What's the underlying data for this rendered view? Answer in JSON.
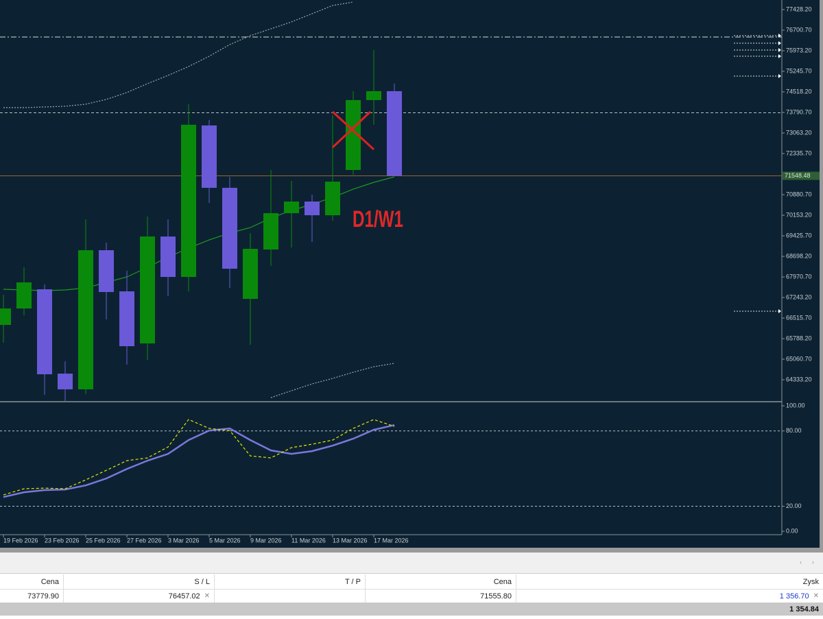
{
  "chart_data": [
    {
      "type": "candlestick",
      "categories": [
        "19 Feb 2026",
        null,
        "23 Feb 2026",
        null,
        "25 Feb 2026",
        null,
        "27 Feb 2026",
        null,
        "3 Mar 2026",
        null,
        "5 Mar 2026",
        null,
        "9 Mar 2026",
        null,
        "11 Mar 2026",
        null,
        "13 Mar 2026",
        null,
        "17 Mar 2026",
        null
      ],
      "open": [
        66273,
        66855,
        67534,
        64551,
        63994,
        68916,
        67461,
        65618,
        69401,
        67971,
        73330,
        71123,
        67195,
        68941,
        70226,
        70638,
        70153,
        71754,
        74227,
        74542
      ],
      "high": [
        67340,
        68310,
        67704,
        64988,
        70008,
        69183,
        68189,
        70105,
        70008,
        74082,
        73524,
        71511,
        69523,
        71754,
        71366,
        70881,
        73694,
        74542,
        75997,
        74809
      ],
      "low": [
        65643,
        66613,
        63800,
        63581,
        63824,
        66467,
        64867,
        65036,
        67292,
        67461,
        70590,
        67583,
        65570,
        68359,
        69013,
        69207,
        69959,
        71584,
        73354,
        71535
      ],
      "close": [
        66855,
        67777,
        64527,
        63994,
        68916,
        67437,
        65521,
        69401,
        67971,
        73354,
        71123,
        68262,
        68965,
        70226,
        70638,
        70153,
        71341,
        74227,
        74542,
        71548.48
      ],
      "up_color": "#0a8a0a",
      "down_color": "#6a5ad8",
      "series": [
        {
          "color": "#1f9a1f",
          "style": "solid",
          "values": [
            67534,
            67510,
            67486,
            67510,
            67583,
            67777,
            67971,
            68310,
            68674,
            68989,
            69281,
            69523,
            69717,
            70056,
            70323,
            70541,
            70784,
            71075,
            71317,
            71511
          ]
        },
        {
          "color": "#9aa8b0",
          "style": "dotted",
          "values": [
            73960,
            73960,
            73985,
            74009,
            74082,
            74251,
            74494,
            74809,
            75100,
            75415,
            75779,
            76191,
            76507,
            76749,
            76992,
            77283,
            77574,
            77695,
            null,
            null
          ]
        },
        {
          "color": "#9aa8b0",
          "style": "dotted",
          "values": [
            null,
            null,
            null,
            null,
            null,
            null,
            null,
            null,
            null,
            null,
            null,
            null,
            null,
            63702,
            63945,
            64187,
            64381,
            64599,
            64794,
            64915
          ]
        }
      ],
      "levels": [
        {
          "value": 76457.02,
          "style": "dash-dot",
          "color": "#d8d8d8"
        },
        {
          "value": 73779.9,
          "style": "dashed",
          "color": "#b8c0c8"
        },
        {
          "value": 71548.48,
          "style": "solid",
          "color": "#a0622a"
        }
      ],
      "price_label": 71548.48,
      "ylim": [
        63581.45,
        77767.7
      ],
      "yticks": [
        {
          "value": 77428.2,
          "label": "77428.20"
        },
        {
          "value": 76700.7,
          "label": "76700.70"
        },
        {
          "value": 75973.2,
          "label": "75973.20"
        },
        {
          "value": 75245.7,
          "label": "75245.70"
        },
        {
          "value": 74518.2,
          "label": "74518.20"
        },
        {
          "value": 73790.7,
          "label": "73790.70"
        },
        {
          "value": 73063.2,
          "label": "73063.20"
        },
        {
          "value": 72335.7,
          "label": "72335.70"
        },
        {
          "value": 70880.7,
          "label": "70880.70"
        },
        {
          "value": 70153.2,
          "label": "70153.20"
        },
        {
          "value": 69425.7,
          "label": "69425.70"
        },
        {
          "value": 68698.2,
          "label": "68698.20"
        },
        {
          "value": 67970.7,
          "label": "67970.70"
        },
        {
          "value": 67243.2,
          "label": "67243.20"
        },
        {
          "value": 66515.7,
          "label": "66515.70"
        },
        {
          "value": 65788.2,
          "label": "65788.20"
        },
        {
          "value": 65060.7,
          "label": "65060.70"
        },
        {
          "value": 64333.2,
          "label": "64333.20"
        }
      ]
    },
    {
      "type": "line",
      "series": [
        {
          "color": "#7b78dc",
          "style": "solid",
          "values": [
            27.3,
            31.1,
            32.8,
            33.3,
            36.6,
            42.1,
            49.7,
            56.3,
            61.7,
            72.7,
            80.3,
            82.0,
            72.7,
            64.5,
            61.7,
            63.9,
            68.3,
            73.8,
            80.9,
            84.7
          ]
        },
        {
          "color": "#e6e600",
          "style": "dashed",
          "values": [
            29.0,
            33.9,
            34.4,
            33.9,
            41.0,
            48.6,
            56.3,
            58.5,
            67.2,
            89.1,
            82.0,
            80.3,
            60.1,
            58.5,
            66.7,
            69.4,
            72.7,
            82.0,
            89.1,
            83.6
          ]
        }
      ],
      "levels": [
        80,
        20
      ],
      "ylim": [
        -2.7,
        102.2
      ],
      "yticks": [
        {
          "value": 100,
          "label": "100.00"
        },
        {
          "value": 80,
          "label": "80.00"
        },
        {
          "value": 20,
          "label": "20.00"
        },
        {
          "value": 0,
          "label": "0.00"
        }
      ]
    }
  ],
  "annotation": "D1/W1",
  "positions_table": {
    "headers": [
      "Cena",
      "S / L",
      "T / P",
      "Cena",
      "Zysk"
    ],
    "row": {
      "open_price": "73779.90",
      "sl": "76457.02",
      "price": "71555.80",
      "profit": "1 356.70"
    },
    "total": "1 354.84"
  }
}
